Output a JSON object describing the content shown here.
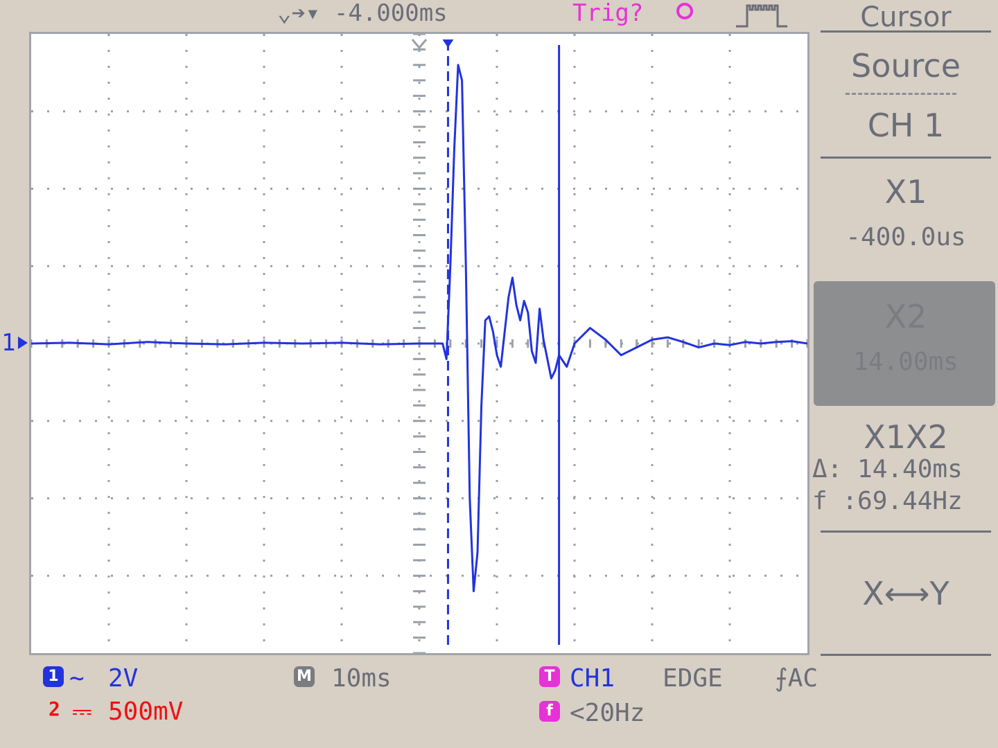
{
  "top_bar": {
    "timebase_offset": "⌄➔▾ -4.000ms",
    "trigger_status": "Trig?",
    "trigger_state_icon": "circle-icon",
    "acquire_icon": "pulse-train-icon"
  },
  "screen": {
    "ch1_marker_label": "1",
    "grid": {
      "divisions_x": 10,
      "divisions_y": 8
    },
    "trace_color": "#2233dd",
    "cursor_color": "#2233dd"
  },
  "chart_data": {
    "type": "line",
    "title": "",
    "xlabel": "",
    "ylabel": "",
    "x_unit": "div",
    "y_unit": "div",
    "xlim": [
      0,
      10
    ],
    "ylim": [
      -4,
      4
    ],
    "grid": true,
    "cursors": {
      "x1_div": 5.37,
      "x2_div": 6.8
    },
    "series": [
      {
        "name": "",
        "x": [
          0,
          0.5,
          1,
          1.5,
          2,
          2.5,
          3,
          3.5,
          4,
          4.5,
          5,
          5.3,
          5.35,
          5.4,
          5.45,
          5.5,
          5.55,
          5.6,
          5.65,
          5.7,
          5.75,
          5.8,
          5.85,
          5.9,
          5.95,
          6.0,
          6.05,
          6.1,
          6.15,
          6.2,
          6.25,
          6.3,
          6.35,
          6.4,
          6.45,
          6.5,
          6.55,
          6.6,
          6.65,
          6.7,
          6.75,
          6.8,
          6.9,
          7.0,
          7.2,
          7.4,
          7.6,
          7.8,
          8.0,
          8.2,
          8.4,
          8.6,
          8.8,
          9.0,
          9.2,
          9.4,
          9.6,
          9.8,
          10.0
        ],
        "values": [
          0,
          0.01,
          -0.01,
          0.02,
          0,
          -0.01,
          0.01,
          0,
          0.01,
          -0.01,
          0,
          0,
          -0.2,
          1.0,
          2.5,
          3.6,
          3.4,
          1.0,
          -2.0,
          -3.2,
          -2.7,
          -0.8,
          0.3,
          0.35,
          0.15,
          -0.15,
          -0.3,
          0.15,
          0.6,
          0.85,
          0.5,
          0.3,
          0.55,
          0.4,
          -0.1,
          -0.25,
          0.45,
          0.05,
          -0.2,
          -0.45,
          -0.35,
          -0.15,
          -0.3,
          0,
          0.2,
          0.05,
          -0.15,
          -0.05,
          0.05,
          0.08,
          0.02,
          -0.05,
          0,
          -0.02,
          0.02,
          0,
          0.02,
          0.03,
          0
        ]
      }
    ]
  },
  "menu": {
    "title": "Cursor",
    "source_label": "Source",
    "source_value": "CH 1",
    "x1_label": "X1",
    "x1_value": "-400.0us",
    "x2_label": "X2",
    "x2_value": "14.00ms",
    "x1x2_label": "X1X2",
    "delta_line": "Δ: 14.40ms",
    "freq_line": "f :69.44Hz",
    "xy_label": "X⟷Y"
  },
  "bottom_bar": {
    "ch1_badge": "1",
    "ch1_coupling": "∼",
    "ch1_scale": "2V",
    "ch2_badge": "2",
    "ch2_coupling": "⎓",
    "ch2_scale": "500mV",
    "math_badge": "M",
    "timebase": "10ms",
    "trig_badge": "T",
    "trig_source": "CH1",
    "trig_type": "EDGE",
    "trig_coupling": "⨍AC",
    "freq_badge": "f",
    "trig_freq": "<20Hz",
    "colors": {
      "ch1": "#2233dd",
      "ch2": "#ee1111",
      "trigger": "#e632d6",
      "neutral": "#6a6e78"
    }
  }
}
